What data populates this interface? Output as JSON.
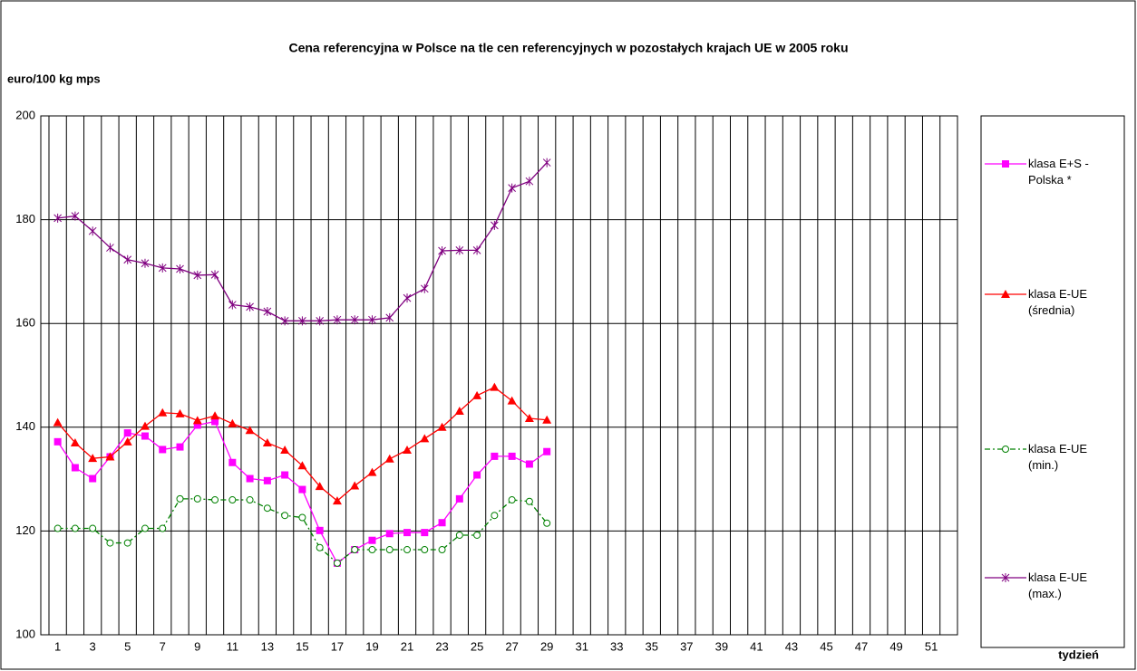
{
  "chart_data": {
    "type": "line",
    "title": "Cena referencyjna w Polsce na tle cen referencyjnych w pozostałych krajach UE w 2005 roku",
    "y_label": "euro/100 kg mps",
    "x_label": "tydzień",
    "categories": [
      1,
      null,
      3,
      null,
      5,
      null,
      7,
      null,
      9,
      null,
      11,
      null,
      13,
      null,
      15,
      null,
      17,
      null,
      19,
      null,
      21,
      null,
      23,
      null,
      25,
      null,
      27,
      null,
      29,
      null,
      31,
      null,
      33,
      null,
      35,
      null,
      37,
      null,
      39,
      null,
      41,
      null,
      43,
      null,
      45,
      null,
      47,
      null,
      49,
      null,
      51,
      null
    ],
    "ylim": [
      100,
      200
    ],
    "yticks": [
      100,
      120,
      140,
      160,
      180,
      200
    ],
    "grid": true,
    "series": [
      {
        "name": "klasa E+S - Polska *",
        "color": "#ff00ff",
        "marker": "square",
        "dash": "solid",
        "values": [
          137.2,
          132.2,
          130.1,
          134.3,
          138.9,
          138.3,
          135.7,
          136.2,
          140.4,
          141.1,
          133.2,
          130.1,
          129.7,
          130.8,
          128.0,
          120.1,
          113.8,
          116.4,
          118.2,
          119.5,
          119.7,
          119.7,
          121.6,
          126.2,
          130.8,
          134.4,
          134.4,
          132.9,
          135.3,
          null,
          null,
          null,
          null,
          null,
          null,
          null,
          null,
          null,
          null,
          null,
          null,
          null,
          null,
          null,
          null,
          null,
          null,
          null,
          null,
          null,
          null,
          null
        ]
      },
      {
        "name": "klasa E-UE (średnia)",
        "color": "#ff0000",
        "marker": "triangle",
        "dash": "solid",
        "values": [
          140.9,
          137.0,
          134.0,
          134.3,
          137.2,
          140.2,
          142.8,
          142.6,
          141.3,
          142.2,
          140.7,
          139.4,
          137.0,
          135.6,
          132.6,
          128.6,
          125.8,
          128.7,
          131.3,
          133.9,
          135.6,
          137.8,
          140.0,
          143.1,
          146.1,
          147.7,
          145.1,
          141.7,
          141.4,
          null,
          null,
          null,
          null,
          null,
          null,
          null,
          null,
          null,
          null,
          null,
          null,
          null,
          null,
          null,
          null,
          null,
          null,
          null,
          null,
          null,
          null,
          null
        ]
      },
      {
        "name": "klasa E-UE (min.)",
        "color": "#008000",
        "marker": "circle",
        "dash": "dashdot",
        "values": [
          120.5,
          120.5,
          120.5,
          117.7,
          117.7,
          120.5,
          120.5,
          126.2,
          126.2,
          126.0,
          126.0,
          126.0,
          124.4,
          123.0,
          122.6,
          116.8,
          113.8,
          116.4,
          116.4,
          116.4,
          116.4,
          116.4,
          116.4,
          119.2,
          119.2,
          123.0,
          126.0,
          125.7,
          121.5,
          null,
          null,
          null,
          null,
          null,
          null,
          null,
          null,
          null,
          null,
          null,
          null,
          null,
          null,
          null,
          null,
          null,
          null,
          null,
          null,
          null,
          null,
          null
        ]
      },
      {
        "name": "klasa E-UE (max.)",
        "color": "#800080",
        "marker": "star",
        "dash": "solid",
        "values": [
          180.3,
          180.7,
          177.8,
          174.6,
          172.3,
          171.6,
          170.7,
          170.5,
          169.3,
          169.4,
          163.6,
          163.2,
          162.3,
          160.5,
          160.5,
          160.5,
          160.7,
          160.7,
          160.7,
          161.1,
          164.9,
          166.7,
          174.0,
          174.1,
          174.1,
          178.9,
          186.1,
          187.4,
          191.0,
          null,
          null,
          null,
          null,
          null,
          null,
          null,
          null,
          null,
          null,
          null,
          null,
          null,
          null,
          null,
          null,
          null,
          null,
          null,
          null,
          null,
          null,
          null
        ]
      }
    ]
  }
}
